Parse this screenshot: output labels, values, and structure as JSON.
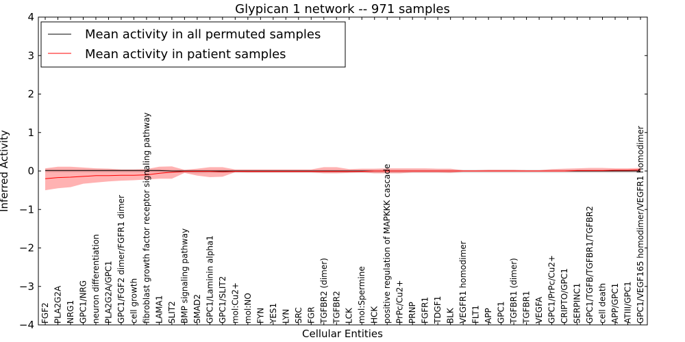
{
  "chart_data": {
    "type": "line",
    "title": "Glypican 1 network -- 971 samples",
    "xlabel": "Cellular Entities",
    "ylabel": "Inferred Activity",
    "ylim": [
      -4,
      4
    ],
    "yticks": [
      -4,
      -3,
      -2,
      -1,
      0,
      1,
      2,
      3,
      4
    ],
    "ytick_labels": [
      "−4",
      "−3",
      "−2",
      "−1",
      "0",
      "1",
      "2",
      "3",
      "4"
    ],
    "legend_position": "top-left",
    "categories": [
      "FGF2",
      "PLA2G2A",
      "NRG1",
      "GPC1/NRG",
      "neuron differentiation",
      "PLA2G2A/GPC1",
      "GPC1/FGF2 dimer/FGFR1 dimer",
      "cell growth",
      "fibroblast growth factor receptor signaling pathway",
      "LAMA1",
      "SLIT2",
      "BMP signaling pathway",
      "SMAD2",
      "GPC1/Laminin alpha1",
      "GPC1/SLIT2",
      "mol:Cu2+",
      "mol:NO",
      "FYN",
      "YES1",
      "LYN",
      "SRC",
      "FGR",
      "TGFBR2 (dimer)",
      "TGFBR2",
      "LCK",
      "mol:Spermine",
      "HCK",
      "positive regulation of MAPKKK cascade",
      "PrPc/Cu2+",
      "PRNP",
      "FGFR1",
      "TDGF1",
      "BLK",
      "VEGFR1 homodimer",
      "FLT1",
      "APP",
      "GPC1",
      "TGFBR1 (dimer)",
      "TGFBR1",
      "VEGFA",
      "GPC1/PrPc/Cu2+",
      "CRIPTO/GPC1",
      "SERPINC1",
      "GPC1/TGFB/TGFBR1/TGFBR2",
      "cell death",
      "APP/GPC1",
      "ATIII/GPC1",
      "GPC1/VEGF165 homodimer/VEGFR1 homodimer"
    ],
    "series": [
      {
        "name": "Mean activity in all permuted samples",
        "color": "#000000",
        "values": [
          0.01,
          0.01,
          0.01,
          0.01,
          0.01,
          0.01,
          0.01,
          0.01,
          0.01,
          0.01,
          0.0,
          0.0,
          0.0,
          0.0,
          0.0,
          0.0,
          0.0,
          0.0,
          0.0,
          0.0,
          0.0,
          0.0,
          0.0,
          0.0,
          0.0,
          0.0,
          0.0,
          0.0,
          0.0,
          0.0,
          0.0,
          0.0,
          0.0,
          0.0,
          0.0,
          0.0,
          0.0,
          0.0,
          0.0,
          0.0,
          0.0,
          0.0,
          0.0,
          0.0,
          0.0,
          0.0,
          0.0,
          0.0
        ],
        "band_lower": [
          -0.03,
          -0.03,
          -0.03,
          -0.03,
          -0.03,
          -0.03,
          -0.03,
          -0.03,
          -0.03,
          -0.03,
          -0.05,
          -0.05,
          -0.06,
          -0.05,
          -0.05,
          -0.05,
          -0.05,
          -0.05,
          -0.05,
          -0.05,
          -0.05,
          -0.05,
          -0.05,
          -0.05,
          -0.05,
          -0.05,
          -0.05,
          -0.05,
          -0.05,
          -0.05,
          -0.05,
          -0.05,
          -0.05,
          -0.05,
          -0.05,
          -0.05,
          -0.05,
          -0.05,
          -0.05,
          -0.05,
          -0.05,
          -0.05,
          -0.05,
          -0.05,
          -0.05,
          -0.05,
          -0.05,
          -0.05
        ],
        "band_upper": [
          0.05,
          0.05,
          0.05,
          0.05,
          0.05,
          0.05,
          0.05,
          0.05,
          0.05,
          0.05,
          0.03,
          0.03,
          0.03,
          0.03,
          0.03,
          0.03,
          0.03,
          0.03,
          0.03,
          0.03,
          0.03,
          0.03,
          0.03,
          0.03,
          0.03,
          0.03,
          0.03,
          0.03,
          0.03,
          0.03,
          0.03,
          0.03,
          0.03,
          0.03,
          0.03,
          0.03,
          0.03,
          0.03,
          0.03,
          0.03,
          0.03,
          0.03,
          0.03,
          0.03,
          0.03,
          0.03,
          0.03,
          0.03
        ]
      },
      {
        "name": "Mean activity in patient samples",
        "color": "#ff0000",
        "values": [
          -0.2,
          -0.17,
          -0.16,
          -0.14,
          -0.12,
          -0.12,
          -0.11,
          -0.11,
          -0.1,
          -0.06,
          -0.03,
          -0.01,
          -0.01,
          -0.01,
          -0.02,
          -0.01,
          -0.01,
          -0.01,
          -0.01,
          -0.01,
          -0.01,
          -0.01,
          -0.01,
          -0.01,
          -0.01,
          -0.01,
          0.0,
          0.0,
          0.0,
          0.0,
          0.0,
          0.0,
          0.0,
          0.0,
          0.0,
          0.0,
          0.0,
          0.0,
          0.0,
          0.0,
          0.0,
          0.0,
          0.01,
          0.01,
          0.01,
          0.02,
          0.02,
          0.03
        ],
        "band_lower": [
          -0.5,
          -0.45,
          -0.42,
          -0.33,
          -0.3,
          -0.27,
          -0.25,
          -0.24,
          -0.22,
          -0.2,
          -0.2,
          -0.05,
          -0.12,
          -0.16,
          -0.15,
          -0.03,
          -0.04,
          -0.04,
          -0.04,
          -0.04,
          -0.04,
          -0.04,
          -0.06,
          -0.06,
          -0.05,
          -0.04,
          -0.06,
          -0.06,
          -0.06,
          -0.04,
          -0.04,
          -0.04,
          -0.05,
          -0.02,
          -0.02,
          -0.02,
          -0.02,
          -0.02,
          -0.02,
          -0.02,
          -0.02,
          -0.02,
          -0.02,
          -0.02,
          -0.02,
          -0.02,
          -0.02,
          -0.02
        ],
        "band_upper": [
          0.07,
          0.11,
          0.11,
          0.09,
          0.07,
          0.06,
          0.04,
          0.04,
          0.05,
          0.11,
          0.12,
          0.03,
          0.06,
          0.1,
          0.1,
          0.04,
          0.04,
          0.04,
          0.04,
          0.04,
          0.04,
          0.04,
          0.1,
          0.1,
          0.05,
          0.06,
          0.06,
          0.07,
          0.07,
          0.07,
          0.07,
          0.06,
          0.06,
          0.02,
          0.02,
          0.03,
          0.03,
          0.03,
          0.02,
          0.02,
          0.05,
          0.06,
          0.07,
          0.08,
          0.08,
          0.07,
          0.07,
          0.08
        ]
      }
    ]
  }
}
